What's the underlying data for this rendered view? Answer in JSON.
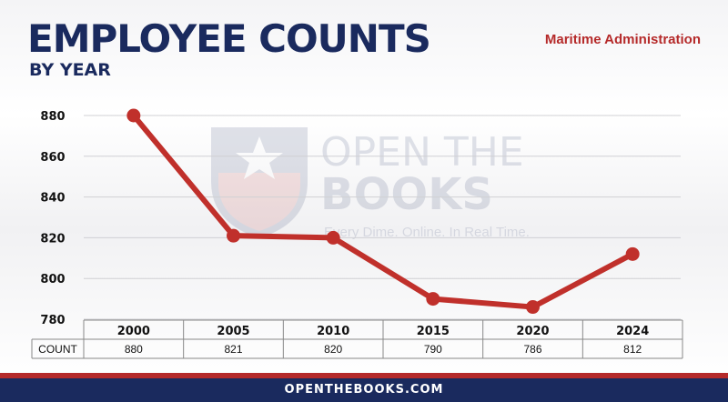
{
  "header": {
    "title": "EMPLOYEE COUNTS",
    "subtitle": "BY YEAR",
    "agency": "Maritime Administration"
  },
  "watermark": {
    "line1": "OPEN THE",
    "line2": "BOOKS",
    "tagline": "Every Dime. Online. In Real Time."
  },
  "footer": {
    "text": "OPENTHEBOOKS.COM"
  },
  "colors": {
    "navy": "#1a2a5e",
    "red": "#b52a2a",
    "line": "#c0302b"
  },
  "chart_data": {
    "type": "line",
    "categories": [
      "2000",
      "2005",
      "2010",
      "2015",
      "2020",
      "2024"
    ],
    "series": [
      {
        "values": [
          880,
          821,
          820,
          790,
          786,
          812
        ]
      }
    ],
    "ylim": [
      780,
      880
    ],
    "yticks": [
      "780",
      "800",
      "820",
      "840",
      "860",
      "880"
    ],
    "table_row_label": "COUNT",
    "table_values": [
      "880",
      "821",
      "820",
      "790",
      "786",
      "812"
    ],
    "grid": true
  }
}
